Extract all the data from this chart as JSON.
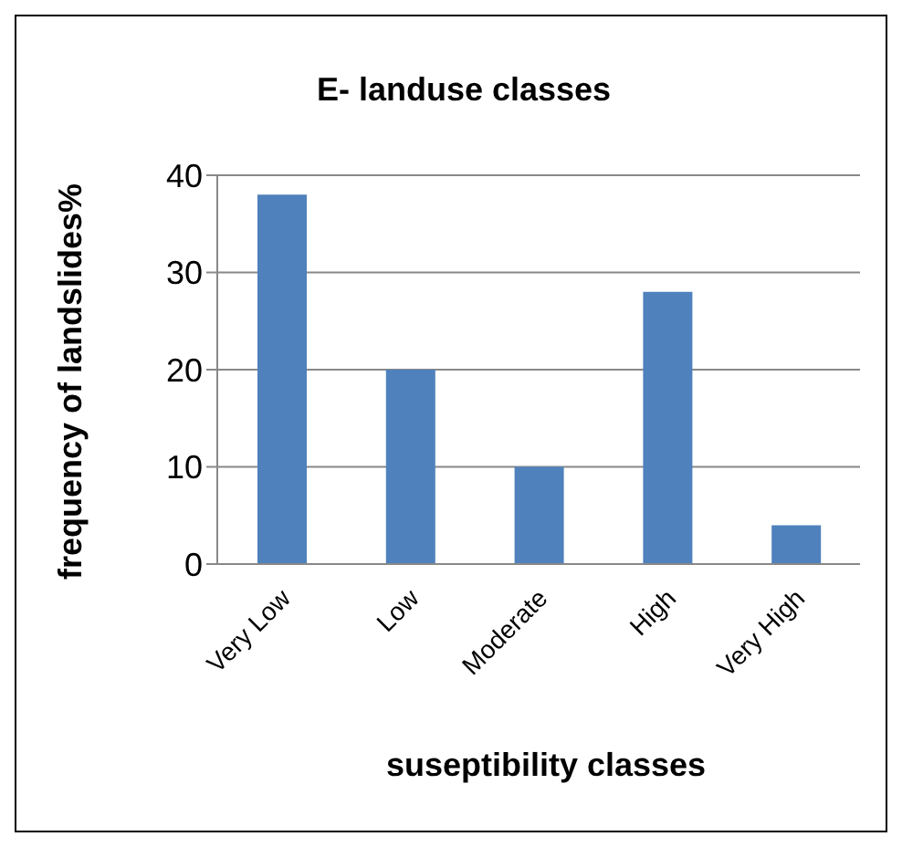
{
  "chart_data": {
    "type": "bar",
    "title": "E- landuse classes",
    "xlabel": "suseptibility classes",
    "ylabel": "frequency of landslides%",
    "categories": [
      "Very Low",
      "Low",
      "Moderate",
      "High",
      "Very High"
    ],
    "values": [
      38,
      20,
      10,
      28,
      4
    ],
    "color": "#4f81bd",
    "ylim": [
      0,
      40
    ],
    "yticks": [
      0,
      10,
      20,
      30,
      40
    ],
    "grid": "y"
  }
}
